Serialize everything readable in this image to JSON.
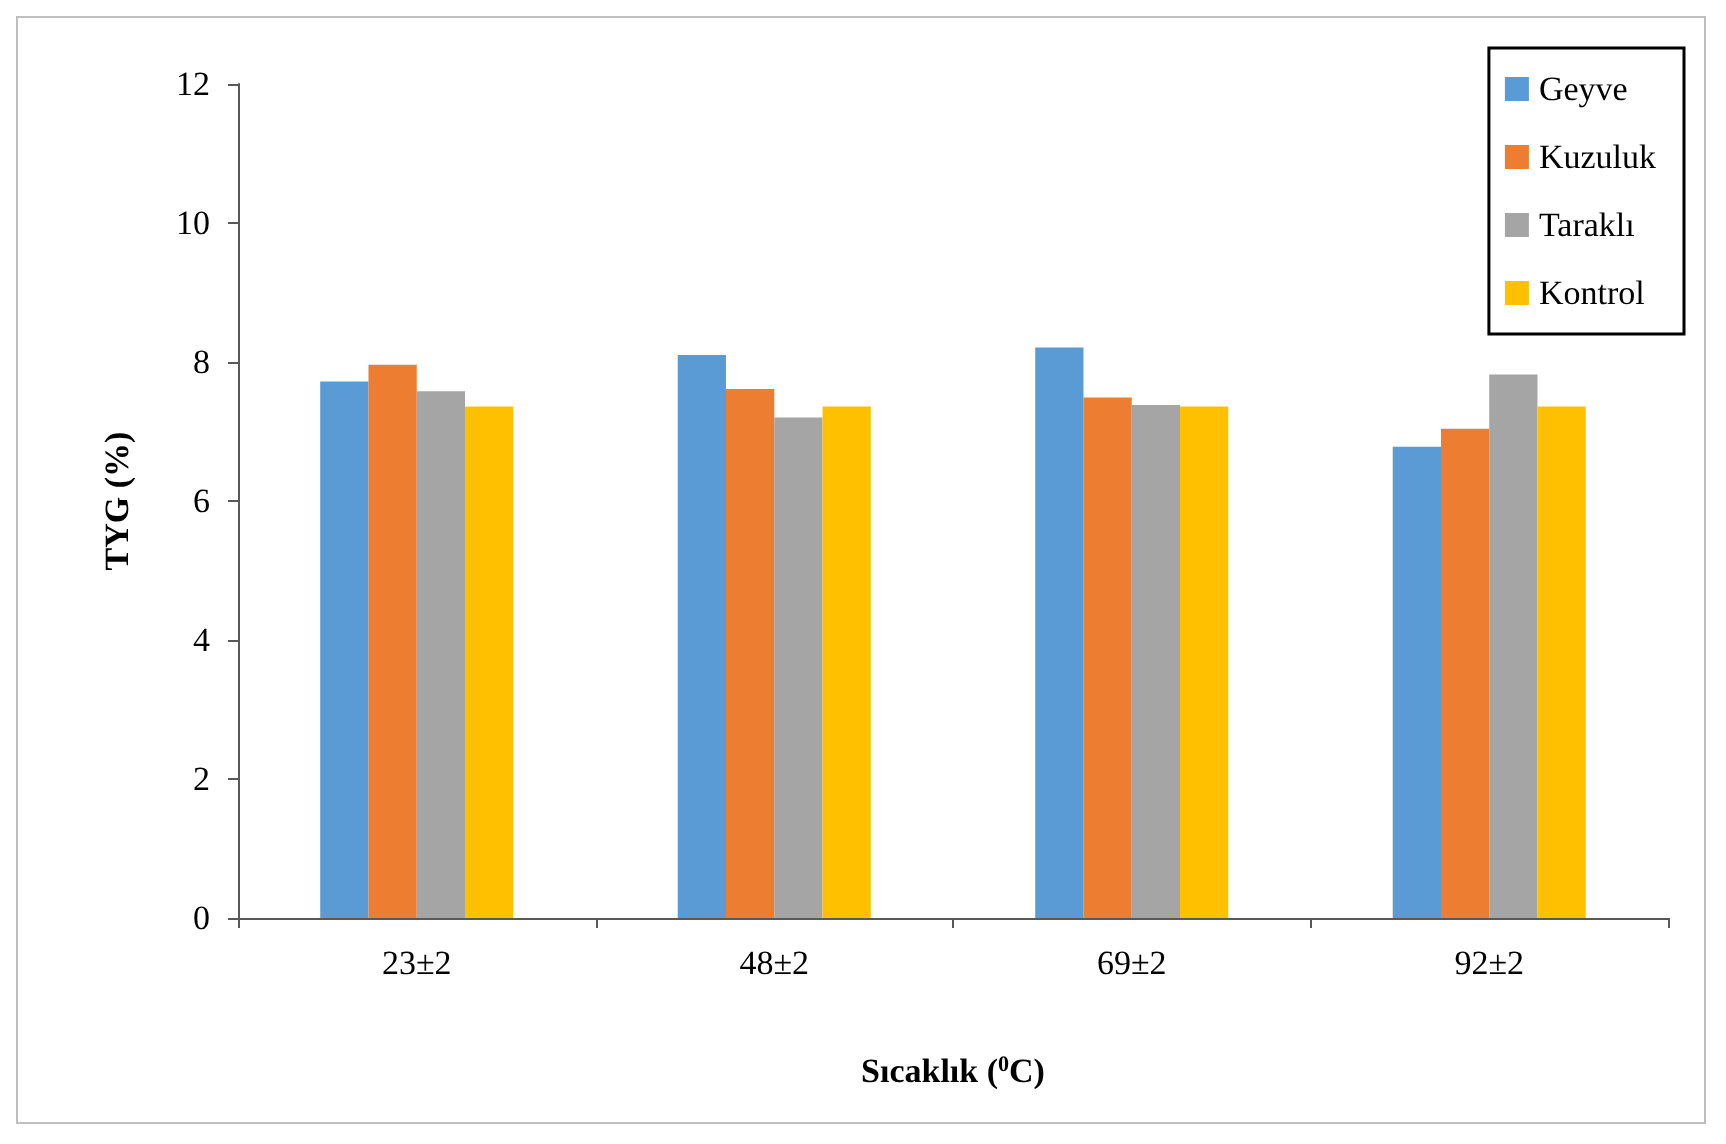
{
  "chart_data": {
    "type": "bar",
    "xlabel": "Sıcaklık ($^{0}$C)",
    "ylabel": "TYG (%)",
    "categories": [
      "23±2",
      "48±2",
      "69±2",
      "92±2"
    ],
    "series": [
      {
        "name": "Geyve",
        "color": "#5b9bd5",
        "values": [
          7.72,
          8.1,
          8.21,
          6.78
        ]
      },
      {
        "name": "Kuzuluk",
        "color": "#ed7d31",
        "values": [
          7.96,
          7.61,
          7.49,
          7.04
        ]
      },
      {
        "name": "Taraklı",
        "color": "#a5a5a5",
        "values": [
          7.58,
          7.2,
          7.38,
          7.82
        ]
      },
      {
        "name": "Kontrol",
        "color": "#ffc000",
        "values": [
          7.36,
          7.36,
          7.36,
          7.36
        ]
      }
    ],
    "ylim": [
      0,
      12
    ],
    "yticks": [
      0,
      2,
      4,
      6,
      8,
      10,
      12
    ],
    "grid": false,
    "legend": "top right"
  }
}
